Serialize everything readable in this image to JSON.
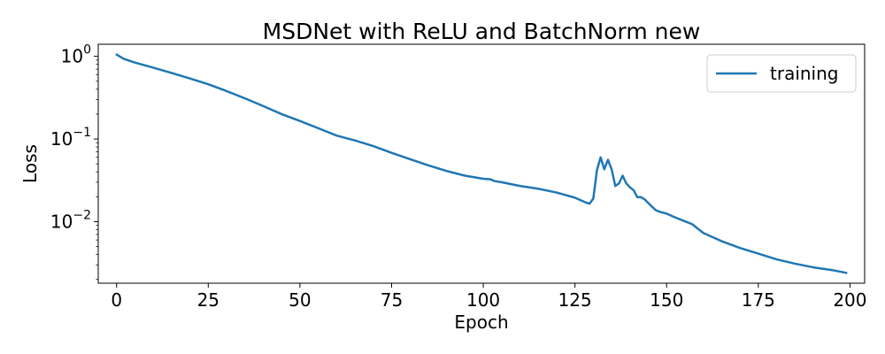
{
  "chart_data": {
    "type": "line",
    "title": "MSDNet with ReLU and BatchNorm new",
    "xlabel": "Epoch",
    "ylabel": "Loss",
    "yscale": "log",
    "xlim": [
      -5,
      204
    ],
    "ylim": [
      0.0018,
      1.4
    ],
    "x_ticks": [
      0,
      25,
      50,
      75,
      100,
      125,
      150,
      175,
      200
    ],
    "x_tick_labels": [
      "0",
      "25",
      "50",
      "75",
      "100",
      "125",
      "150",
      "175",
      "200"
    ],
    "y_ticks": [
      {
        "value": 1,
        "base": "10",
        "exponent": "0"
      },
      {
        "value": 0.1,
        "base": "10",
        "exponent": "−1"
      },
      {
        "value": 0.01,
        "base": "10",
        "exponent": "−2"
      }
    ],
    "grid": false,
    "legend_position": "top-right",
    "series": [
      {
        "name": "training",
        "color": "#1f77b4",
        "x": [
          0,
          2,
          5,
          10,
          15,
          20,
          25,
          30,
          35,
          40,
          45,
          50,
          55,
          60,
          65,
          70,
          75,
          80,
          85,
          90,
          95,
          100,
          102,
          103,
          105,
          110,
          115,
          120,
          125,
          128,
          129,
          130,
          131,
          132,
          133,
          134,
          135,
          136,
          137,
          138,
          139,
          140,
          141,
          142,
          143,
          144,
          145,
          146,
          147,
          148,
          150,
          152,
          155,
          157,
          160,
          165,
          170,
          175,
          180,
          185,
          190,
          195,
          199
        ],
        "y": [
          1.05,
          0.93,
          0.84,
          0.73,
          0.63,
          0.54,
          0.46,
          0.38,
          0.31,
          0.25,
          0.2,
          0.165,
          0.135,
          0.11,
          0.096,
          0.082,
          0.068,
          0.057,
          0.048,
          0.041,
          0.036,
          0.033,
          0.0325,
          0.031,
          0.03,
          0.027,
          0.025,
          0.0225,
          0.0195,
          0.017,
          0.0165,
          0.019,
          0.042,
          0.06,
          0.043,
          0.056,
          0.043,
          0.027,
          0.029,
          0.036,
          0.029,
          0.026,
          0.024,
          0.0198,
          0.0198,
          0.0186,
          0.0168,
          0.0152,
          0.0138,
          0.0132,
          0.0125,
          0.0114,
          0.0101,
          0.0093,
          0.0073,
          0.0058,
          0.0048,
          0.0041,
          0.0035,
          0.0031,
          0.0028,
          0.0026,
          0.0024
        ]
      }
    ]
  }
}
